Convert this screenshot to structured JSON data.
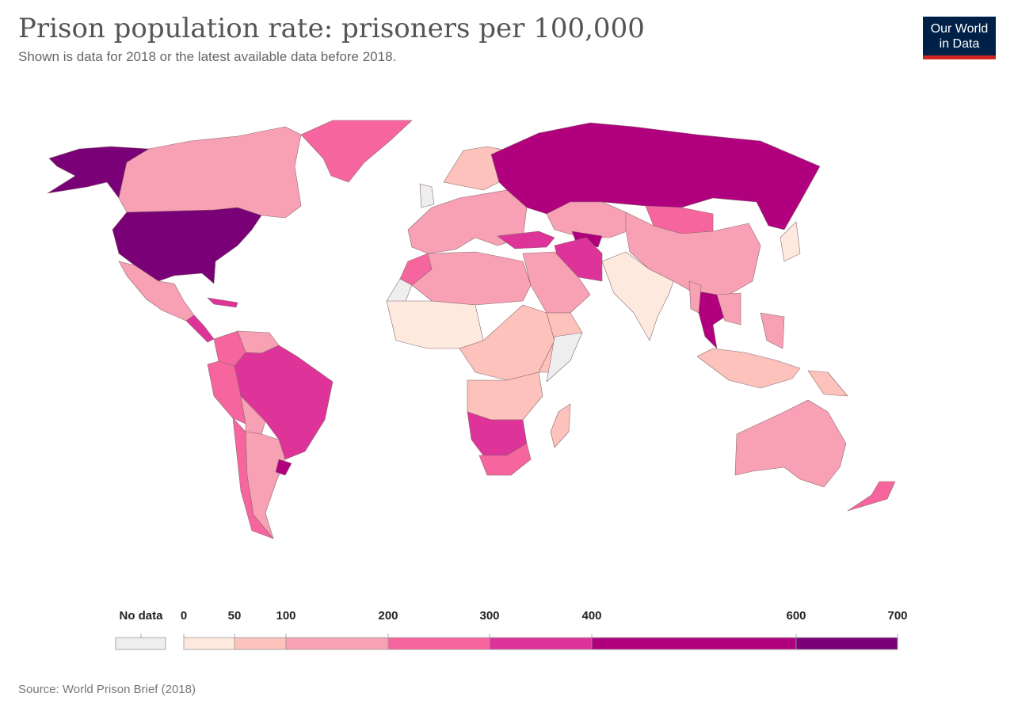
{
  "title": "Prison population rate: prisoners per 100,000",
  "subtitle": "Shown is data for 2018 or the latest available data before 2018.",
  "logo": {
    "line1": "Our World",
    "line2": "in Data"
  },
  "source": "Source: World Prison Brief (2018)",
  "legend": {
    "no_data_label": "No data",
    "no_data_color": "#eeeeee",
    "bins": [
      {
        "from": 0,
        "to": 50,
        "color": "#fee9df"
      },
      {
        "from": 50,
        "to": 100,
        "color": "#fcc2bb"
      },
      {
        "from": 100,
        "to": 200,
        "color": "#f9a1b4"
      },
      {
        "from": 200,
        "to": 300,
        "color": "#f7659e"
      },
      {
        "from": 300,
        "to": 400,
        "color": "#de3399"
      },
      {
        "from": 400,
        "to": 600,
        "color": "#b0007e"
      },
      {
        "from": 600,
        "to": 700,
        "color": "#7a0077"
      }
    ],
    "ticks": [
      "0",
      "50",
      "100",
      "200",
      "300",
      "400",
      "600",
      "700"
    ]
  },
  "map_regions": [
    {
      "region": "united-states",
      "color": "#7a0077"
    },
    {
      "region": "alaska",
      "color": "#7a0077"
    },
    {
      "region": "canada",
      "color": "#f9a1b4"
    },
    {
      "region": "greenland",
      "color": "#f7659e"
    },
    {
      "region": "mexico",
      "color": "#f9a1b4"
    },
    {
      "region": "central-america",
      "color": "#de3399"
    },
    {
      "region": "brazil",
      "color": "#de3399"
    },
    {
      "region": "uruguay",
      "color": "#b0007e"
    },
    {
      "region": "argentina",
      "color": "#f9a1b4"
    },
    {
      "region": "chile",
      "color": "#f7659e"
    },
    {
      "region": "peru",
      "color": "#f7659e"
    },
    {
      "region": "colombia",
      "color": "#f7659e"
    },
    {
      "region": "venezuela",
      "color": "#f9a1b4"
    },
    {
      "region": "bolivia",
      "color": "#f9a1b4"
    },
    {
      "region": "west-europe",
      "color": "#f9a1b4"
    },
    {
      "region": "scandinavia",
      "color": "#fcc2bb"
    },
    {
      "region": "russia",
      "color": "#b0007e"
    },
    {
      "region": "kazakhstan",
      "color": "#f9a1b4"
    },
    {
      "region": "mongolia",
      "color": "#f7659e"
    },
    {
      "region": "china",
      "color": "#f9a1b4"
    },
    {
      "region": "india",
      "color": "#fee9df"
    },
    {
      "region": "iran",
      "color": "#de3399"
    },
    {
      "region": "turkey",
      "color": "#de3399"
    },
    {
      "region": "turkmenistan",
      "color": "#b0007e"
    },
    {
      "region": "arabia",
      "color": "#f9a1b4"
    },
    {
      "region": "thailand",
      "color": "#b0007e"
    },
    {
      "region": "southeast-asia",
      "color": "#f9a1b4"
    },
    {
      "region": "japan",
      "color": "#fee9df"
    },
    {
      "region": "indonesia",
      "color": "#fcc2bb"
    },
    {
      "region": "north-africa",
      "color": "#f9a1b4"
    },
    {
      "region": "morocco",
      "color": "#f7659e"
    },
    {
      "region": "west-africa",
      "color": "#fee9df"
    },
    {
      "region": "central-africa",
      "color": "#fcc2bb"
    },
    {
      "region": "east-africa",
      "color": "#fcc2bb"
    },
    {
      "region": "southern-africa",
      "color": "#de3399"
    },
    {
      "region": "south-africa",
      "color": "#f7659e"
    },
    {
      "region": "madagascar",
      "color": "#fcc2bb"
    },
    {
      "region": "australia",
      "color": "#f9a1b4"
    },
    {
      "region": "new-zealand",
      "color": "#f7659e"
    },
    {
      "region": "papua-new-guinea",
      "color": "#fcc2bb"
    },
    {
      "region": "no-data-areas",
      "color": "#eeeeee"
    }
  ]
}
